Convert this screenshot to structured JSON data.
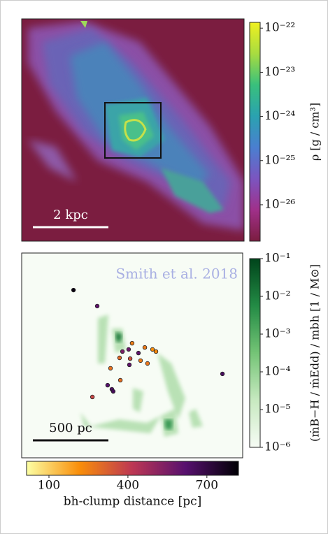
{
  "chart_data": [
    {
      "type": "image",
      "scale_bar": {
        "label": "2 kpc",
        "length": 2
      },
      "colorbar": {
        "label": "ρ [g / cm³]",
        "log": true,
        "colormap": "density",
        "ylim": [
          1.5e-27,
          1.35e-22
        ],
        "yticks": [
          {
            "value": 1e-22,
            "label": "10⁻²²"
          },
          {
            "value": 1e-23,
            "label": "10⁻²³"
          },
          {
            "value": 1e-24,
            "label": "10⁻²⁴"
          },
          {
            "value": 1e-25,
            "label": "10⁻²⁵"
          },
          {
            "value": 1e-26,
            "label": "10⁻²⁶"
          }
        ]
      }
    },
    {
      "type": "scatter",
      "annotation": "Smith et al. 2018",
      "scale_bar": {
        "label": "500 pc",
        "length": 500
      },
      "x": [
        343,
        500,
        731,
        815,
        866,
        889,
        667,
        708,
        773,
        648,
        718,
        787,
        833,
        713,
        588,
        653,
        569,
        597,
        606,
        468,
        1329
      ],
      "y": [
        1111,
        1005,
        759,
        731,
        718,
        704,
        704,
        718,
        694,
        662,
        657,
        644,
        625,
        616,
        593,
        514,
        481,
        454,
        440,
        403,
        556
      ],
      "c": [
        800,
        600,
        250,
        260,
        220,
        230,
        550,
        580,
        600,
        300,
        350,
        260,
        270,
        600,
        280,
        290,
        620,
        640,
        660,
        380,
        650
      ],
      "color_axis": {
        "label": "bh-clump distance [pc]",
        "colormap": "inferno_r",
        "xlim": [
          15,
          820
        ],
        "xticks": [
          100,
          400,
          700
        ]
      },
      "colorbar": {
        "label": "(ṁB−H / ṁEdd) / mbh [1 / M⊙]",
        "log": true,
        "colormap": "Greens",
        "ylim": [
          1e-06,
          0.1
        ],
        "yticks": [
          {
            "value": 0.1,
            "label": "10⁻¹"
          },
          {
            "value": 0.01,
            "label": "10⁻²"
          },
          {
            "value": 0.001,
            "label": "10⁻³"
          },
          {
            "value": 0.0001,
            "label": "10⁻⁴"
          },
          {
            "value": 1e-05,
            "label": "10⁻⁵"
          },
          {
            "value": 1e-06,
            "label": "10⁻⁶"
          }
        ]
      }
    }
  ]
}
